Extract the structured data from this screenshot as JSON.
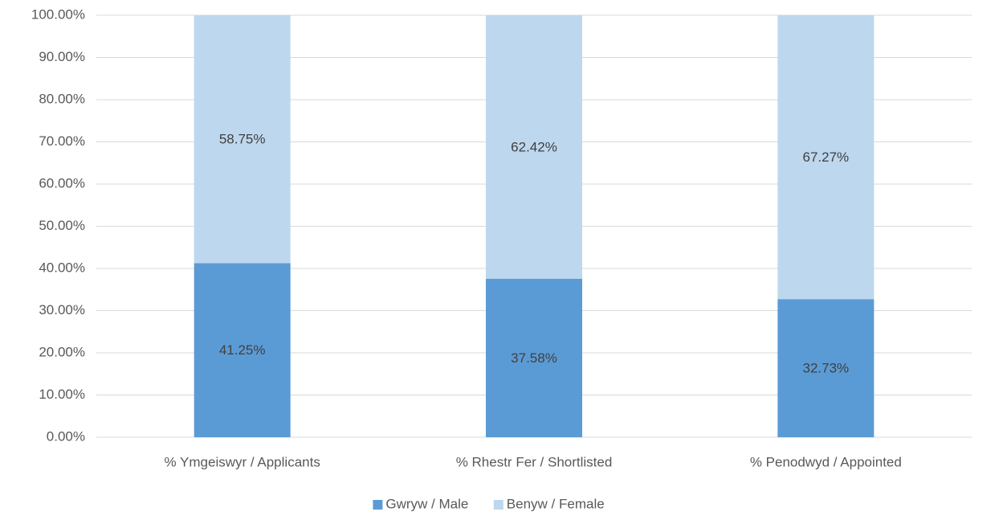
{
  "chart_data": {
    "type": "bar",
    "stacked": true,
    "categories": [
      "% Ymgeiswyr / Applicants",
      "% Rhestr Fer / Shortlisted",
      "% Penodwyd / Appointed"
    ],
    "series": [
      {
        "name": "Gwryw / Male",
        "color": "#5b9bd5",
        "values": [
          41.25,
          37.58,
          32.73
        ],
        "value_labels": [
          "41.25%",
          "37.58%",
          "32.73%"
        ]
      },
      {
        "name": "Benyw / Female",
        "color": "#bdd7ee",
        "values": [
          58.75,
          62.42,
          67.27
        ],
        "value_labels": [
          "58.75%",
          "62.42%",
          "67.27%"
        ]
      }
    ],
    "ylim": [
      0,
      100
    ],
    "yticks": [
      {
        "value": 0,
        "label": "0.00%"
      },
      {
        "value": 10,
        "label": "10.00%"
      },
      {
        "value": 20,
        "label": "20.00%"
      },
      {
        "value": 30,
        "label": "30.00%"
      },
      {
        "value": 40,
        "label": "40.00%"
      },
      {
        "value": 50,
        "label": "50.00%"
      },
      {
        "value": 60,
        "label": "60.00%"
      },
      {
        "value": 70,
        "label": "70.00%"
      },
      {
        "value": 80,
        "label": "80.00%"
      },
      {
        "value": 90,
        "label": "90.00%"
      },
      {
        "value": 100,
        "label": "100.00%"
      }
    ],
    "grid": true,
    "legend": "bottom"
  }
}
